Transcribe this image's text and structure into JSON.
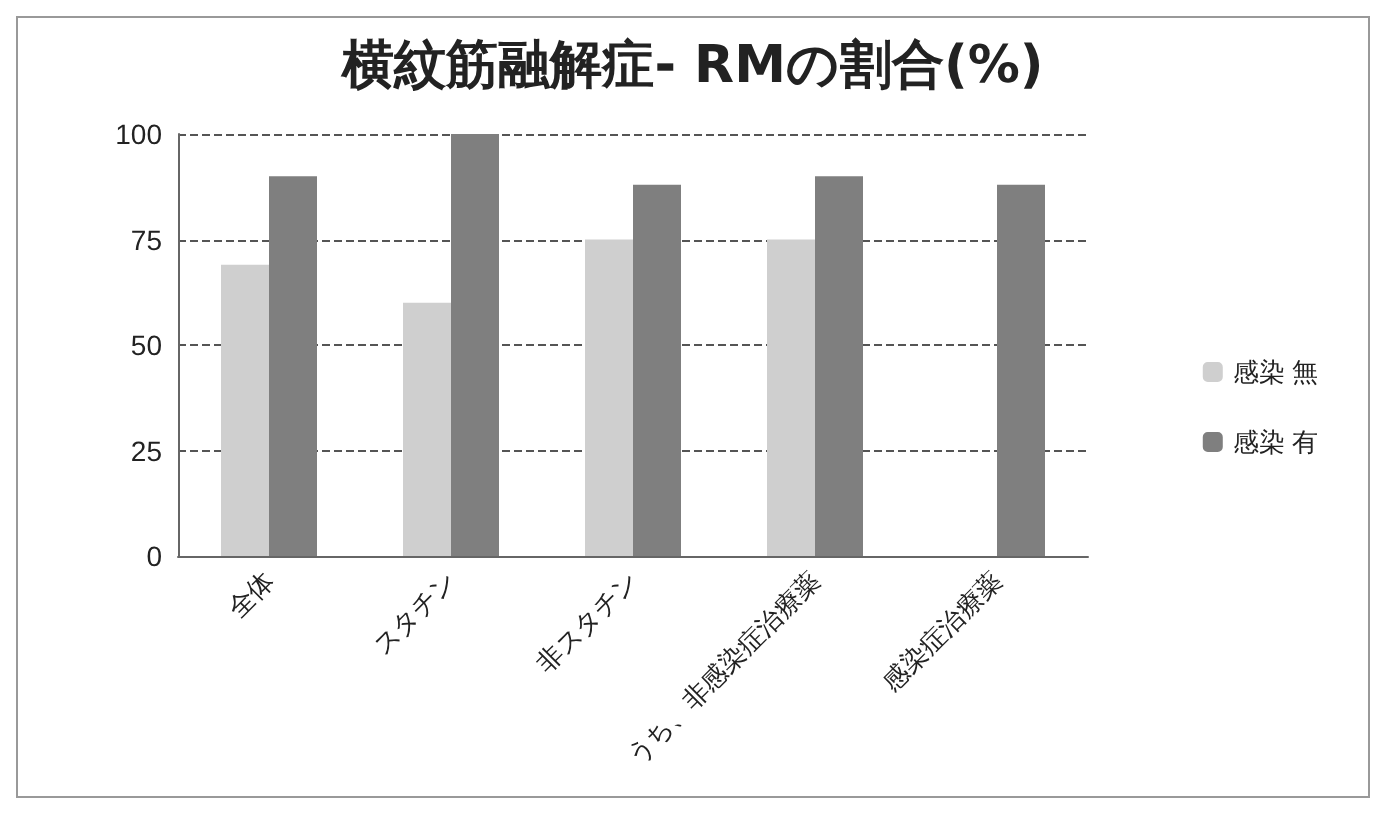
{
  "chart_data": {
    "type": "bar",
    "title": "横紋筋融解症- RMの割合(%)",
    "categories": [
      "全体",
      "スタチン",
      "非スタチン",
      "うち、非感染症治療薬",
      "感染症治療薬"
    ],
    "series": [
      {
        "name": "感染 無",
        "color": "#cfcfcf",
        "values": [
          69,
          60,
          75,
          75,
          null
        ]
      },
      {
        "name": "感染 有",
        "color": "#7f7f7f",
        "values": [
          90,
          100,
          88,
          90,
          88
        ]
      }
    ],
    "ylim": [
      0,
      100
    ],
    "yticks": [
      0,
      25,
      50,
      75,
      100
    ],
    "grid": "y",
    "legend": "right"
  }
}
